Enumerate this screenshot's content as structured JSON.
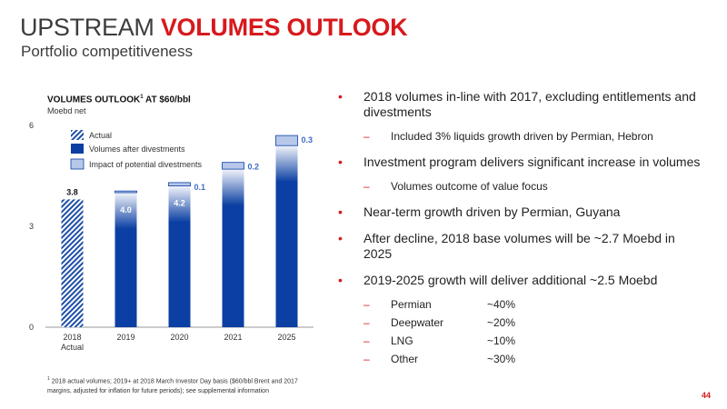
{
  "header": {
    "title_part1": "UPSTREAM",
    "title_part2": "VOLUMES OUTLOOK",
    "subtitle": "Portfolio competitiveness"
  },
  "chart_data": {
    "type": "bar",
    "title": "VOLUMES OUTLOOK",
    "title_sup": "1",
    "title_suffix": "AT $60/bbl",
    "ylabel": "Moebd net",
    "ylim": [
      0,
      6
    ],
    "yticks": [
      0,
      3,
      6
    ],
    "categories": [
      "2018",
      "2019",
      "2020",
      "2021",
      "2025"
    ],
    "category_sublabels": [
      "Actual",
      "",
      "",
      "",
      ""
    ],
    "series": [
      {
        "name": "Actual",
        "values": [
          3.8,
          null,
          null,
          null,
          null
        ],
        "labels": [
          "3.8",
          "",
          "",
          "",
          ""
        ]
      },
      {
        "name": "Volumes after divestments",
        "values": [
          null,
          4.0,
          4.2,
          4.7,
          5.4
        ],
        "labels": [
          "",
          "4.0",
          "4.2",
          "",
          ""
        ]
      },
      {
        "name": "Impact of potential divestments",
        "values": [
          null,
          0.05,
          0.1,
          0.2,
          0.3
        ],
        "labels": [
          "",
          "",
          "0.1",
          "0.2",
          "0.3"
        ]
      }
    ],
    "legend_position": "top-left",
    "grid": false,
    "colors": {
      "actual": "#1f4fa8",
      "volumes": "#0b3fa3",
      "divest": "#b6c7ea",
      "label_light": "#3d6cc6"
    }
  },
  "bullets": [
    {
      "text": "2018 volumes in-line with 2017, excluding entitlements and divestments",
      "subs": [
        "Included 3% liquids growth driven by Permian, Hebron"
      ]
    },
    {
      "text": "Investment program delivers significant increase in volumes",
      "subs": [
        "Volumes outcome of value focus"
      ]
    },
    {
      "text": "Near-term growth driven by Permian, Guyana",
      "subs": []
    },
    {
      "text": "After decline, 2018 base volumes will be ~2.7 Moebd in 2025",
      "subs": []
    },
    {
      "text": "2019-2025 growth will deliver additional ~2.5 Moebd",
      "subs": []
    }
  ],
  "growth_breakdown": [
    {
      "name": "Permian",
      "value": "~40%"
    },
    {
      "name": "Deepwater",
      "value": "~20%"
    },
    {
      "name": "LNG",
      "value": "~10%"
    },
    {
      "name": "Other",
      "value": "~30%"
    }
  ],
  "footnote": {
    "sup": "1",
    "text": "2018 actual volumes; 2019+ at 2018 March Investor Day basis ($60/bbl Brent and 2017 margins, adjusted for inflation for future periods); see supplemental information"
  },
  "page_number": "44"
}
